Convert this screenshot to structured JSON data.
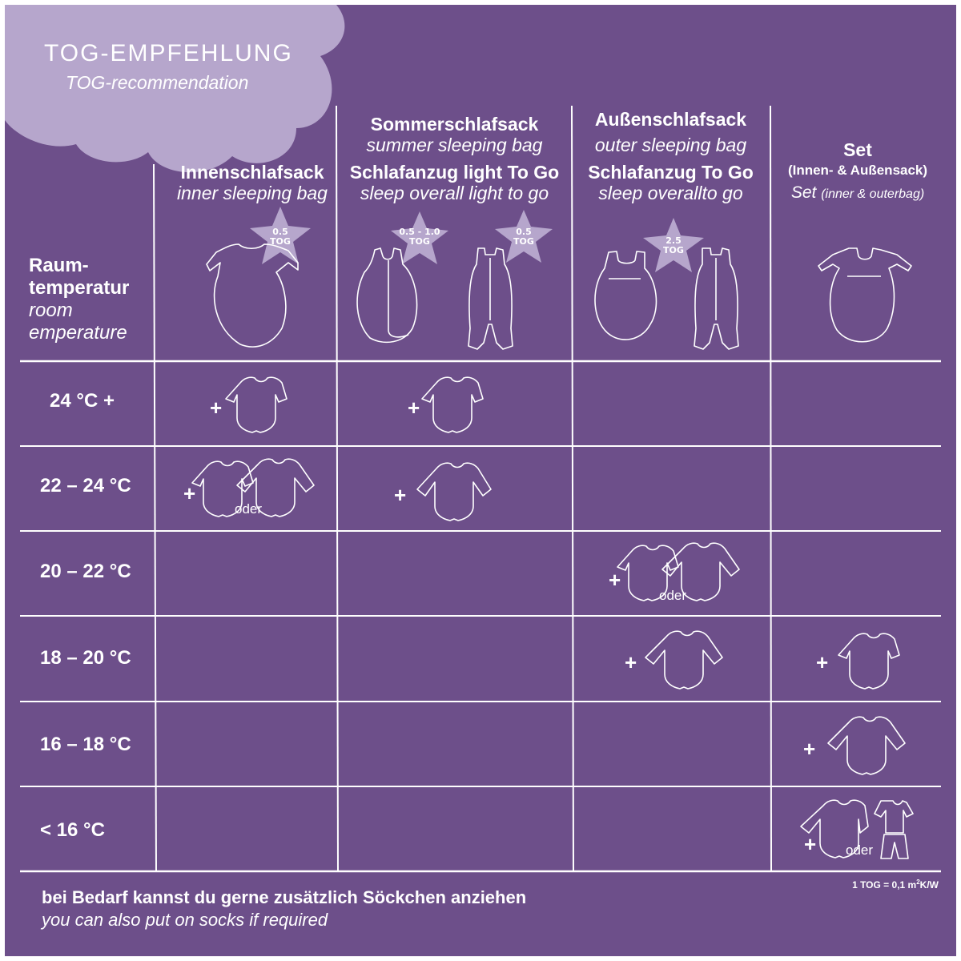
{
  "title": "TOG-EMPFEHLUNG",
  "subtitle": "TOG-recommendation",
  "row_header": {
    "de_line1": "Raum-",
    "de_line2": "temperatur",
    "en_line1": "room",
    "en_line2": "emperature"
  },
  "columns": [
    {
      "de": "Innenschlafsack",
      "en": "inner sleeping bag"
    },
    {
      "de_top": "Sommerschlafsack",
      "en_top": "summer sleeping bag",
      "de": "Schlafanzug light To Go",
      "en": "sleep overall light to go"
    },
    {
      "de_top": "Außenschlafsack",
      "en_top": "outer sleeping bag",
      "de": "Schlafanzug To Go",
      "en": "sleep overallto go"
    },
    {
      "de": "Set",
      "de_detail": "(Innen- & Außensack)",
      "en": "Set",
      "en_detail": "(inner & outerbag)"
    }
  ],
  "stars": [
    {
      "value": "0.5",
      "unit": "TOG"
    },
    {
      "value": "0.5 - 1.0",
      "unit": "TOG"
    },
    {
      "value": "0.5",
      "unit": "TOG"
    },
    {
      "value": "2.5",
      "unit": "TOG"
    }
  ],
  "rows": [
    "24 °C +",
    "22 – 24 °C",
    "20 – 22 °C",
    "18 – 20 °C",
    "16 – 18 °C",
    "< 16 °C"
  ],
  "plus": "+",
  "or_label": "oder",
  "footer": {
    "de": "bei Bedarf kannst du gerne zusätzlich Söckchen anziehen",
    "en": "you can also put on socks if required"
  },
  "tog_note": {
    "prefix": "1 TOG = 0,1 m",
    "sup": "2",
    "suffix": "K/W"
  },
  "colors": {
    "background": "#6d4f8a",
    "cloud": "#b6a6cc",
    "lines": "#ffffff"
  }
}
